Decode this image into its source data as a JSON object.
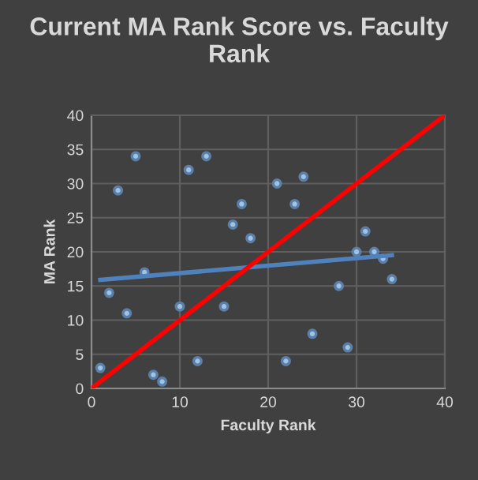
{
  "chart_data": {
    "type": "scatter",
    "title": "Current MA Rank Score vs. Faculty Rank",
    "xlabel": "Faculty Rank",
    "ylabel": "MA Rank",
    "xlim": [
      0,
      40
    ],
    "ylim": [
      0,
      40
    ],
    "xticks": [
      0,
      10,
      20,
      30,
      40
    ],
    "yticks": [
      0,
      5,
      10,
      15,
      20,
      25,
      30,
      35,
      40
    ],
    "grid": true,
    "series": [
      {
        "marker": "circle",
        "color": "#9dc3e6",
        "x": [
          5,
          3,
          11,
          13,
          21,
          17,
          16,
          18,
          6,
          2,
          4,
          10,
          15,
          1,
          12,
          7,
          8,
          24,
          23,
          31,
          30,
          32,
          33,
          34,
          28,
          25,
          29,
          22
        ],
        "values": [
          34,
          29,
          32,
          34,
          30,
          27,
          24,
          22,
          17,
          14,
          11,
          12,
          12,
          3,
          4,
          2,
          1,
          31,
          27,
          23,
          20,
          20,
          19,
          16,
          15,
          8,
          6,
          4
        ]
      },
      {
        "type": "line",
        "color": "#4f81bd",
        "x": [
          1,
          34
        ],
        "values": [
          15.9,
          19.5
        ]
      },
      {
        "type": "line",
        "color": "#ff0000",
        "x": [
          0,
          40
        ],
        "values": [
          0,
          40
        ]
      }
    ]
  }
}
